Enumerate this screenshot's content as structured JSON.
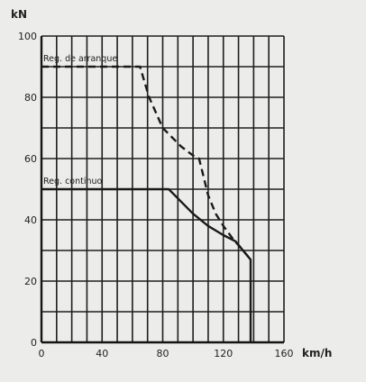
{
  "chart_data": {
    "type": "line",
    "xlabel": "km/h",
    "ylabel": "kN",
    "xlim": [
      0,
      160
    ],
    "ylim": [
      0,
      100
    ],
    "x_ticks": [
      "0",
      "40",
      "80",
      "120",
      "160"
    ],
    "y_ticks": [
      "0",
      "20",
      "40",
      "60",
      "80",
      "100"
    ],
    "grid": true,
    "series": [
      {
        "name": "Reg. de arranque",
        "style": "dashed",
        "color": "#1a1a1a",
        "points": [
          [
            0,
            90
          ],
          [
            65,
            90
          ],
          [
            71,
            80
          ],
          [
            80,
            70
          ],
          [
            92,
            64
          ],
          [
            100,
            61
          ],
          [
            104,
            60
          ],
          [
            106,
            56
          ],
          [
            110,
            48
          ],
          [
            115,
            42
          ],
          [
            120,
            38
          ],
          [
            126,
            34
          ],
          [
            133,
            30
          ],
          [
            138,
            27
          ]
        ]
      },
      {
        "name": "Reg. continuo",
        "style": "solid",
        "color": "#1a1a1a",
        "points": [
          [
            0,
            50
          ],
          [
            84,
            50
          ],
          [
            90,
            47
          ],
          [
            100,
            42
          ],
          [
            110,
            38
          ],
          [
            120,
            35
          ],
          [
            128,
            33
          ],
          [
            133,
            30
          ],
          [
            138,
            27
          ],
          [
            138,
            0
          ]
        ]
      }
    ]
  }
}
